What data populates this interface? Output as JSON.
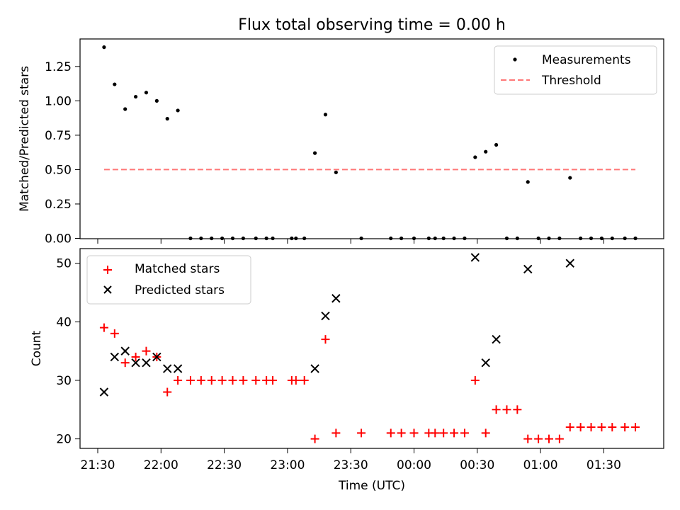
{
  "chart_data": [
    {
      "type": "scatter",
      "title": "Flux total observing time = 0.00 h",
      "xlabel": "",
      "ylabel": "Matched/Predicted stars",
      "ylim": [
        0,
        1.45
      ],
      "y_ticks": [
        "0.00",
        "0.25",
        "0.50",
        "0.75",
        "1.00",
        "1.25"
      ],
      "grid": false,
      "legend_position": "top-right",
      "series": [
        {
          "name": "Measurements",
          "kind": "points",
          "color": "#000000",
          "x": [
            "21:33",
            "21:38",
            "21:43",
            "21:48",
            "21:53",
            "21:58",
            "22:03",
            "22:08",
            "22:14",
            "22:19",
            "22:24",
            "22:29",
            "22:34",
            "22:39",
            "22:45",
            "22:50",
            "22:53",
            "23:02",
            "23:04",
            "23:08",
            "23:13",
            "23:18",
            "23:23",
            "23:35",
            "23:49",
            "23:54",
            "00:00",
            "00:07",
            "00:10",
            "00:14",
            "00:19",
            "00:24",
            "00:29",
            "00:34",
            "00:39",
            "00:44",
            "00:49",
            "00:54",
            "00:59",
            "01:04",
            "01:09",
            "01:14",
            "01:19",
            "01:24",
            "01:29",
            "01:34",
            "01:40",
            "01:45"
          ],
          "y": [
            1.39,
            1.12,
            0.94,
            1.03,
            1.06,
            1.0,
            0.87,
            0.93,
            0.0,
            0.0,
            0.0,
            0.0,
            0.0,
            0.0,
            0.0,
            0.0,
            0.0,
            0.0,
            0.0,
            0.0,
            0.62,
            0.9,
            0.48,
            0.0,
            0.0,
            0.0,
            0.0,
            0.0,
            0.0,
            0.0,
            0.0,
            0.0,
            0.59,
            0.63,
            0.68,
            0.0,
            0.0,
            0.41,
            0.0,
            0.0,
            0.0,
            0.44,
            0.0,
            0.0,
            0.0,
            0.0,
            0.0,
            0.0
          ]
        },
        {
          "name": "Threshold",
          "kind": "dashed-line",
          "color": "#ff7777",
          "x": [
            "21:33",
            "01:45"
          ],
          "y": [
            0.5,
            0.5
          ]
        }
      ]
    },
    {
      "type": "scatter",
      "title": "",
      "xlabel": "Time (UTC)",
      "ylabel": "Count",
      "ylim": [
        18.5,
        52.5
      ],
      "y_ticks": [
        "20",
        "30",
        "40",
        "50"
      ],
      "x_ticks": [
        "21:30",
        "22:00",
        "22:30",
        "23:00",
        "23:30",
        "00:00",
        "00:30",
        "01:00",
        "01:30"
      ],
      "grid": false,
      "legend_position": "top-left",
      "series": [
        {
          "name": "Matched stars",
          "marker": "plus",
          "color": "#ff0000",
          "x": [
            "21:33",
            "21:38",
            "21:43",
            "21:48",
            "21:53",
            "21:58",
            "22:03",
            "22:08",
            "22:14",
            "22:19",
            "22:24",
            "22:29",
            "22:34",
            "22:39",
            "22:45",
            "22:50",
            "22:53",
            "23:02",
            "23:04",
            "23:08",
            "23:13",
            "23:18",
            "23:23",
            "23:35",
            "23:49",
            "23:54",
            "00:00",
            "00:07",
            "00:10",
            "00:14",
            "00:19",
            "00:24",
            "00:29",
            "00:34",
            "00:39",
            "00:44",
            "00:49",
            "00:54",
            "00:59",
            "01:04",
            "01:09",
            "01:14",
            "01:19",
            "01:24",
            "01:29",
            "01:34",
            "01:40",
            "01:45"
          ],
          "y": [
            39,
            38,
            33,
            34,
            35,
            34,
            28,
            30,
            30,
            30,
            30,
            30,
            30,
            30,
            30,
            30,
            30,
            30,
            30,
            30,
            20,
            37,
            21,
            21,
            21,
            21,
            21,
            21,
            21,
            21,
            21,
            21,
            30,
            21,
            25,
            25,
            25,
            20,
            20,
            20,
            20,
            22,
            22,
            22,
            22,
            22,
            22,
            22
          ]
        },
        {
          "name": "Predicted stars",
          "marker": "x",
          "color": "#000000",
          "x": [
            "21:33",
            "21:38",
            "21:43",
            "21:48",
            "21:53",
            "21:58",
            "22:03",
            "22:08",
            "23:13",
            "23:18",
            "23:23",
            "00:29",
            "00:34",
            "00:39",
            "00:54",
            "01:14"
          ],
          "y": [
            28,
            34,
            35,
            33,
            33,
            34,
            32,
            32,
            32,
            41,
            44,
            51,
            33,
            37,
            49,
            50
          ]
        }
      ]
    }
  ]
}
